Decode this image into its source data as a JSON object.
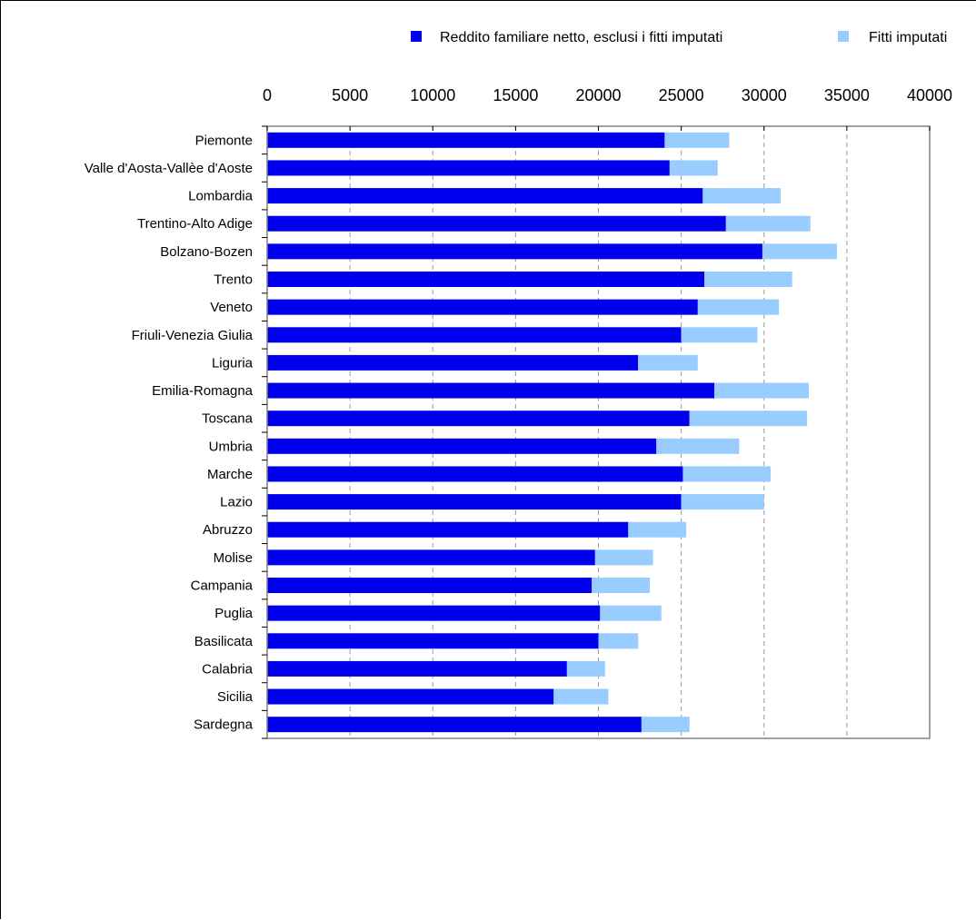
{
  "chart_data": {
    "type": "bar",
    "orientation": "horizontal",
    "stacked": true,
    "title": "",
    "xlabel": "",
    "ylabel": "",
    "xlim": [
      0,
      40000
    ],
    "x_ticks": [
      "0",
      "5000",
      "10000",
      "15000",
      "20000",
      "25000",
      "30000",
      "35000",
      "40000"
    ],
    "x_tick_values": [
      0,
      5000,
      10000,
      15000,
      20000,
      25000,
      30000,
      35000,
      40000
    ],
    "x_axis_position": "top",
    "grid": "vertical dashed",
    "legend_position": "top-right",
    "categories": [
      "Piemonte",
      "Valle d'Aosta-Vallèe d'Aoste",
      "Lombardia",
      "Trentino-Alto Adige",
      "Bolzano-Bozen",
      "Trento",
      "Veneto",
      "Friuli-Venezia Giulia",
      "Liguria",
      "Emilia-Romagna",
      "Toscana",
      "Umbria",
      "Marche",
      "Lazio",
      "Abruzzo",
      "Molise",
      "Campania",
      "Puglia",
      "Basilicata",
      "Calabria",
      "Sicilia",
      "Sardegna"
    ],
    "series": [
      {
        "name": "Reddito familiare netto, esclusi i fitti imputati",
        "color": "#0000ee",
        "values": [
          24000,
          24300,
          26300,
          27700,
          29900,
          26400,
          26000,
          25000,
          22400,
          27000,
          25500,
          23500,
          25100,
          25000,
          21800,
          19800,
          19600,
          20100,
          20000,
          18100,
          17300,
          22600
        ]
      },
      {
        "name": "Fitti imputati",
        "color": "#99ccff",
        "values": [
          3900,
          2900,
          4700,
          5100,
          4500,
          5300,
          4900,
          4600,
          3600,
          5700,
          7100,
          5000,
          5300,
          5000,
          3500,
          3500,
          3500,
          3700,
          2400,
          2300,
          3300,
          2900
        ]
      }
    ]
  }
}
